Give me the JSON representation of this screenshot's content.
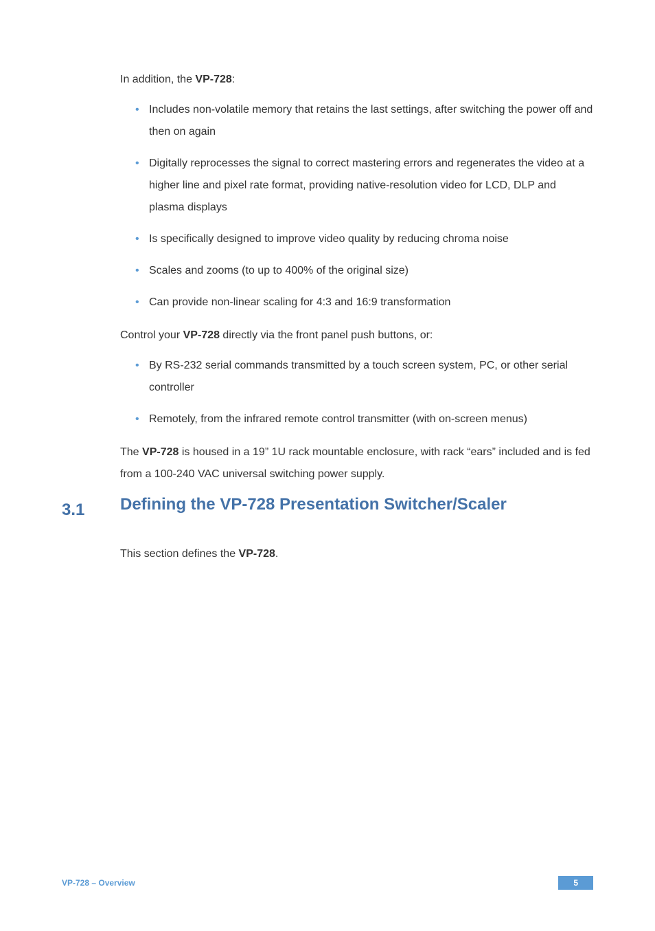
{
  "intro1": "In addition, the ",
  "intro1_bold": "VP-728",
  "intro1_after": ":",
  "bullets1": [
    "Includes non-volatile memory that retains the last settings, after switching the power off and then on again",
    "Digitally reprocesses the signal to correct mastering errors and regenerates the video at a higher line and pixel rate format, providing native-resolution video for LCD, DLP and plasma displays",
    "Is specifically designed to improve video quality by reducing chroma noise",
    "Scales and zooms (to up to 400% of the original size)",
    "Can provide non-linear scaling for 4:3 and 16:9 transformation"
  ],
  "control_before": "Control your ",
  "control_bold": "VP-728",
  "control_after": " directly via the front panel push buttons, or:",
  "bullets2": [
    "By RS-232 serial commands transmitted by a touch screen system, PC, or other serial controller",
    "Remotely, from the infrared remote control transmitter (with on-screen menus)"
  ],
  "housing_before": "The ",
  "housing_bold": "VP-728",
  "housing_after": " is housed in a 19” 1U rack mountable enclosure, with rack “ears” included and is fed from a 100-240 VAC universal switching power supply.",
  "section_num": "3.1",
  "section_title": "Defining the VP-728 Presentation Switcher/Scaler",
  "defines_before": "This section defines the ",
  "defines_bold": "VP-728",
  "defines_after": ".",
  "footer_prefix": "VP-728 – ",
  "footer_section": "Overview",
  "page_number": "5",
  "colors": {
    "text": "#333333",
    "accent": "#5b9bd5",
    "heading": "#4472a8",
    "background": "#ffffff"
  },
  "typography": {
    "body_fontsize": 16,
    "heading_fontsize": 24,
    "footer_fontsize": 12,
    "line_height": 2.0
  }
}
